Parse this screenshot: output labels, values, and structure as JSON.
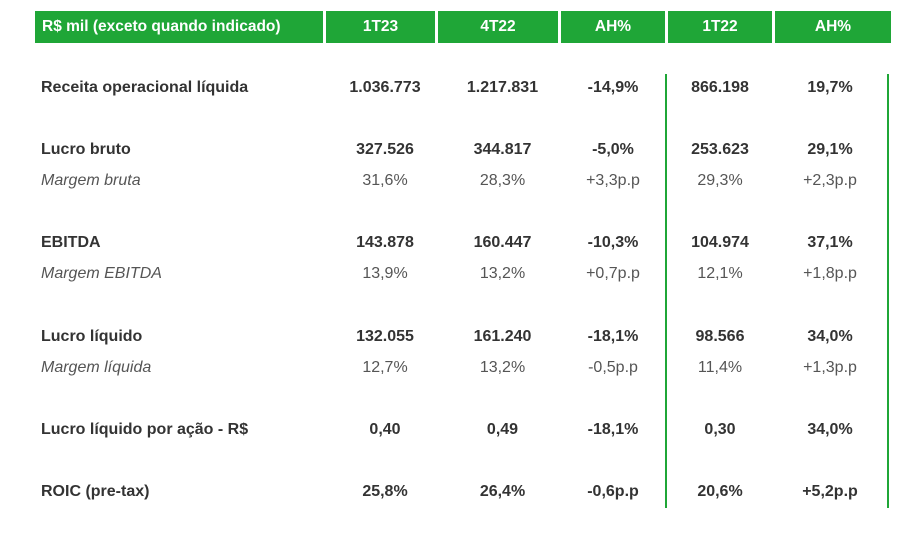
{
  "colors": {
    "header_bg": "#1fa637",
    "header_text": "#ffffff",
    "divider": "#1fa637"
  },
  "header": {
    "label": "R$ mil (exceto quando indicado)",
    "col1": "1T23",
    "col2": "4T22",
    "col3": "AH%",
    "col4": "1T22",
    "col5": "AH%"
  },
  "rows": [
    {
      "label": "Receita operacional líquida",
      "v1": "1.036.773",
      "v2": "1.217.831",
      "v3": "-14,9%",
      "v4": "866.198",
      "v5": "19,7%"
    },
    {
      "label": "Lucro bruto",
      "v1": "327.526",
      "v2": "344.817",
      "v3": "-5,0%",
      "v4": "253.623",
      "v5": "29,1%"
    },
    {
      "label": "Margem bruta",
      "v1": "31,6%",
      "v2": "28,3%",
      "v3": "+3,3p.p",
      "v4": "29,3%",
      "v5": "+2,3p.p"
    },
    {
      "label": "EBITDA",
      "v1": "143.878",
      "v2": "160.447",
      "v3": "-10,3%",
      "v4": "104.974",
      "v5": "37,1%"
    },
    {
      "label": "Margem EBITDA",
      "v1": "13,9%",
      "v2": "13,2%",
      "v3": "+0,7p.p",
      "v4": "12,1%",
      "v5": "+1,8p.p"
    },
    {
      "label": "Lucro líquido",
      "v1": "132.055",
      "v2": "161.240",
      "v3": "-18,1%",
      "v4": "98.566",
      "v5": "34,0%"
    },
    {
      "label": "Margem líquida",
      "v1": "12,7%",
      "v2": "13,2%",
      "v3": "-0,5p.p",
      "v4": "11,4%",
      "v5": "+1,3p.p"
    },
    {
      "label": "Lucro líquido por ação - R$",
      "v1": "0,40",
      "v2": "0,49",
      "v3": "-18,1%",
      "v4": "0,30",
      "v5": "34,0%"
    },
    {
      "label": "ROIC (pre-tax)",
      "v1": "25,8%",
      "v2": "26,4%",
      "v3": "-0,6p.p",
      "v4": "20,6%",
      "v5": "+5,2p.p"
    }
  ]
}
